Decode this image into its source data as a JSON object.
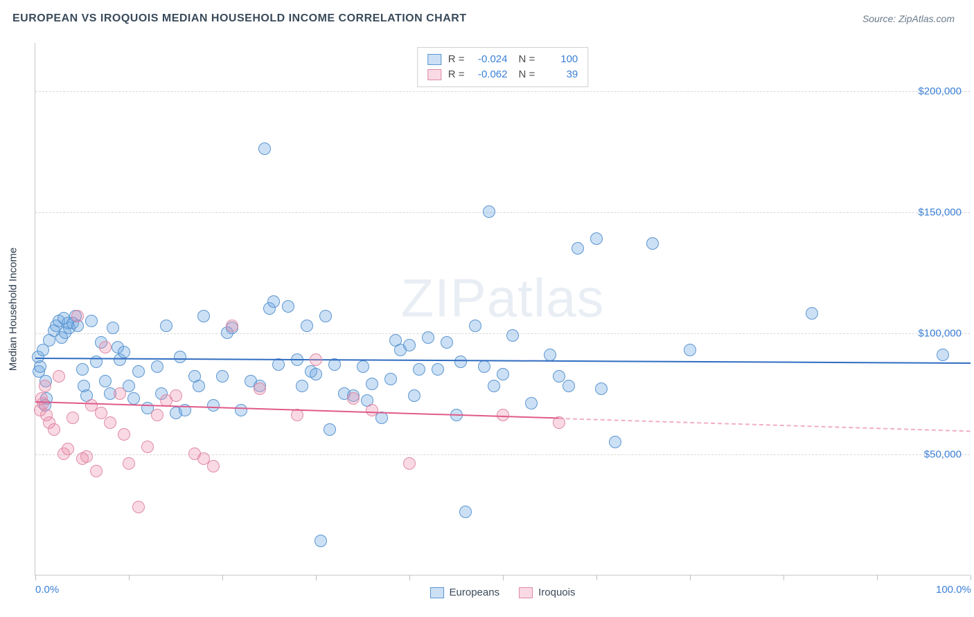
{
  "header": {
    "title": "EUROPEAN VS IROQUOIS MEDIAN HOUSEHOLD INCOME CORRELATION CHART",
    "source": "Source: ZipAtlas.com"
  },
  "watermark": "ZIPatlas",
  "chart": {
    "type": "scatter",
    "xlim": [
      0,
      100
    ],
    "ylim": [
      0,
      220000
    ],
    "xticks": [
      0,
      10,
      20,
      30,
      40,
      50,
      60,
      70,
      80,
      90,
      100
    ],
    "xtick_labels": {
      "0": "0.0%",
      "100": "100.0%"
    },
    "yticks": [
      50000,
      100000,
      150000,
      200000
    ],
    "ytick_labels": [
      "$50,000",
      "$100,000",
      "$150,000",
      "$200,000"
    ],
    "yaxis_title": "Median Household Income",
    "background_color": "#ffffff",
    "grid_color": "#d8d8d8",
    "xlabel_color": "#3b7fd6",
    "ylabel_color": "#3b7fd6",
    "marker_radius": 9,
    "series": [
      {
        "name": "Europeans",
        "fill_color": "rgba(110,165,225,0.35)",
        "stroke_color": "#5a95d0",
        "trend_color": "#2f6cc0",
        "trend": {
          "y_at_x0": 90000,
          "y_at_x100": 88000,
          "dash_from_x": 100
        },
        "points": [
          [
            0.3,
            90000
          ],
          [
            0.4,
            84000
          ],
          [
            0.5,
            86000
          ],
          [
            0.8,
            93000
          ],
          [
            1.0,
            70000
          ],
          [
            1.1,
            80000
          ],
          [
            1.2,
            73000
          ],
          [
            1.5,
            97000
          ],
          [
            2.0,
            101000
          ],
          [
            2.2,
            103000
          ],
          [
            2.5,
            105000
          ],
          [
            2.8,
            98000
          ],
          [
            3.0,
            106000
          ],
          [
            3.2,
            100000
          ],
          [
            3.5,
            104000
          ],
          [
            3.6,
            102000
          ],
          [
            4.0,
            104000
          ],
          [
            4.3,
            107000
          ],
          [
            4.5,
            103000
          ],
          [
            5.0,
            85000
          ],
          [
            5.2,
            78000
          ],
          [
            5.5,
            74000
          ],
          [
            6.0,
            105000
          ],
          [
            6.5,
            88000
          ],
          [
            7.0,
            96000
          ],
          [
            7.5,
            80000
          ],
          [
            8.0,
            75000
          ],
          [
            8.3,
            102000
          ],
          [
            8.8,
            94000
          ],
          [
            9.0,
            89000
          ],
          [
            9.5,
            92000
          ],
          [
            10.0,
            78000
          ],
          [
            10.5,
            73000
          ],
          [
            11.0,
            84000
          ],
          [
            12.0,
            69000
          ],
          [
            13.0,
            86000
          ],
          [
            13.5,
            75000
          ],
          [
            14.0,
            103000
          ],
          [
            15.0,
            67000
          ],
          [
            15.5,
            90000
          ],
          [
            16.0,
            68000
          ],
          [
            17.0,
            82000
          ],
          [
            17.5,
            78000
          ],
          [
            18.0,
            107000
          ],
          [
            19.0,
            70000
          ],
          [
            20.0,
            82000
          ],
          [
            20.5,
            100000
          ],
          [
            21.0,
            102000
          ],
          [
            22.0,
            68000
          ],
          [
            23.0,
            80000
          ],
          [
            24.0,
            78000
          ],
          [
            24.5,
            176000
          ],
          [
            25.0,
            110000
          ],
          [
            25.5,
            113000
          ],
          [
            26.0,
            87000
          ],
          [
            27.0,
            111000
          ],
          [
            28.0,
            89000
          ],
          [
            28.5,
            78000
          ],
          [
            29.0,
            103000
          ],
          [
            29.5,
            84000
          ],
          [
            30.0,
            83000
          ],
          [
            30.5,
            14000
          ],
          [
            31.0,
            107000
          ],
          [
            31.5,
            60000
          ],
          [
            32.0,
            87000
          ],
          [
            33.0,
            75000
          ],
          [
            34.0,
            74000
          ],
          [
            35.0,
            86000
          ],
          [
            35.5,
            72000
          ],
          [
            36.0,
            79000
          ],
          [
            37.0,
            65000
          ],
          [
            38.0,
            81000
          ],
          [
            38.5,
            97000
          ],
          [
            39.0,
            93000
          ],
          [
            40.0,
            95000
          ],
          [
            40.5,
            74000
          ],
          [
            41.0,
            85000
          ],
          [
            42.0,
            98000
          ],
          [
            43.0,
            85000
          ],
          [
            44.0,
            96000
          ],
          [
            45.0,
            66000
          ],
          [
            45.5,
            88000
          ],
          [
            46.0,
            26000
          ],
          [
            47.0,
            103000
          ],
          [
            48.0,
            86000
          ],
          [
            48.5,
            150000
          ],
          [
            49.0,
            78000
          ],
          [
            50.0,
            83000
          ],
          [
            51.0,
            99000
          ],
          [
            53.0,
            71000
          ],
          [
            55.0,
            91000
          ],
          [
            56.0,
            82000
          ],
          [
            57.0,
            78000
          ],
          [
            58.0,
            135000
          ],
          [
            60.0,
            139000
          ],
          [
            60.5,
            77000
          ],
          [
            62.0,
            55000
          ],
          [
            66.0,
            137000
          ],
          [
            70.0,
            93000
          ],
          [
            83.0,
            108000
          ],
          [
            97.0,
            91000
          ]
        ]
      },
      {
        "name": "Iroquois",
        "fill_color": "rgba(235,140,170,0.32)",
        "stroke_color": "#e08aa5",
        "trend_color": "#e05a8a",
        "trend": {
          "y_at_x0": 72000,
          "y_at_x100": 60000,
          "dash_from_x": 56
        },
        "points": [
          [
            0.5,
            68000
          ],
          [
            0.7,
            73000
          ],
          [
            0.8,
            71000
          ],
          [
            1.0,
            78000
          ],
          [
            1.2,
            66000
          ],
          [
            1.5,
            63000
          ],
          [
            2.0,
            60000
          ],
          [
            2.5,
            82000
          ],
          [
            3.0,
            50000
          ],
          [
            3.5,
            52000
          ],
          [
            4.0,
            65000
          ],
          [
            4.5,
            107000
          ],
          [
            5.0,
            48000
          ],
          [
            5.5,
            49000
          ],
          [
            6.0,
            70000
          ],
          [
            6.5,
            43000
          ],
          [
            7.0,
            67000
          ],
          [
            7.5,
            94000
          ],
          [
            8.0,
            63000
          ],
          [
            9.0,
            75000
          ],
          [
            9.5,
            58000
          ],
          [
            10.0,
            46000
          ],
          [
            11.0,
            28000
          ],
          [
            12.0,
            53000
          ],
          [
            13.0,
            66000
          ],
          [
            14.0,
            72000
          ],
          [
            15.0,
            74000
          ],
          [
            17.0,
            50000
          ],
          [
            18.0,
            48000
          ],
          [
            19.0,
            45000
          ],
          [
            21.0,
            103000
          ],
          [
            24.0,
            77000
          ],
          [
            28.0,
            66000
          ],
          [
            30.0,
            89000
          ],
          [
            34.0,
            73000
          ],
          [
            36.0,
            68000
          ],
          [
            40.0,
            46000
          ],
          [
            50.0,
            66000
          ],
          [
            56.0,
            63000
          ]
        ]
      }
    ]
  },
  "legend_top": {
    "rows": [
      {
        "swatch_fill": "rgba(110,165,225,0.35)",
        "swatch_stroke": "#5a95d0",
        "r_label": "R =",
        "r_value": "-0.024",
        "n_label": "N =",
        "n_value": "100"
      },
      {
        "swatch_fill": "rgba(235,140,170,0.32)",
        "swatch_stroke": "#e08aa5",
        "r_label": "R =",
        "r_value": "-0.062",
        "n_label": "N =",
        "n_value": "39"
      }
    ]
  },
  "legend_bottom": {
    "items": [
      {
        "swatch_fill": "rgba(110,165,225,0.35)",
        "swatch_stroke": "#5a95d0",
        "label": "Europeans"
      },
      {
        "swatch_fill": "rgba(235,140,170,0.32)",
        "swatch_stroke": "#e08aa5",
        "label": "Iroquois"
      }
    ]
  }
}
